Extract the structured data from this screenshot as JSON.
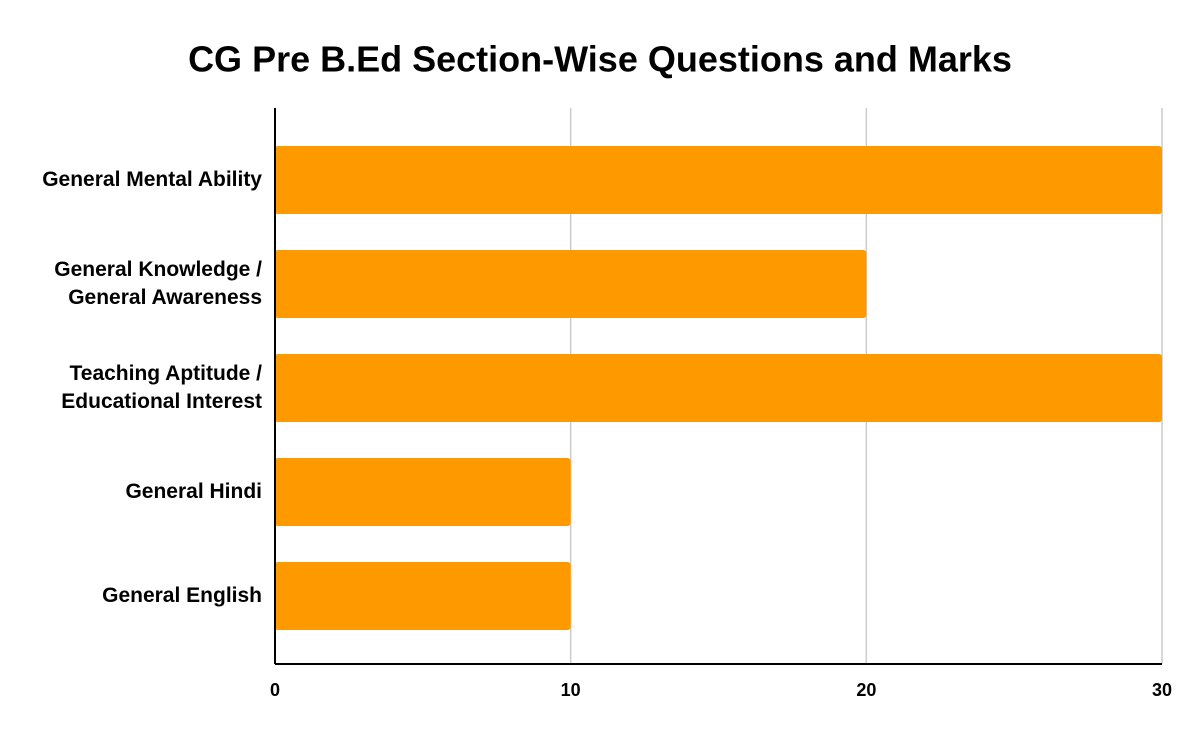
{
  "chart_data": {
    "type": "bar",
    "orientation": "horizontal",
    "title": "CG Pre B.Ed Section-Wise Questions and Marks",
    "categories": [
      "General Mental Ability",
      "General Knowledge / General Awareness",
      "Teaching Aptitude / Educational Interest",
      "General Hindi",
      "General English"
    ],
    "values": [
      30,
      20,
      30,
      10,
      10
    ],
    "color": "#ff9900",
    "xlim": [
      0,
      30
    ],
    "xticks": [
      0,
      10,
      20,
      30
    ],
    "grid": true
  }
}
